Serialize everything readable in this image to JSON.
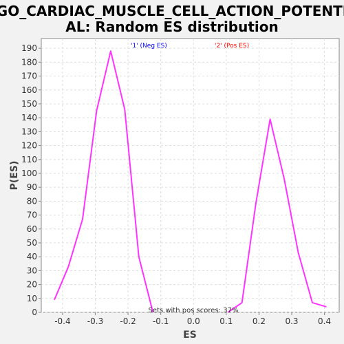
{
  "chart_data": {
    "type": "line",
    "title_line1": "GO_CARDIAC_MUSCLE_CELL_ACTION_POTENTI",
    "title_line2": "AL: Random ES distribution",
    "xlabel": "ES",
    "ylabel": "P(ES)",
    "xlim": [
      -0.465,
      0.445
    ],
    "ylim": [
      0,
      197
    ],
    "xticks": [
      -0.4,
      -0.3,
      -0.2,
      -0.1,
      0.0,
      0.1,
      0.2,
      0.3,
      0.4
    ],
    "xtick_labels": [
      "-0.4",
      "-0.3",
      "-0.2",
      "-0.1",
      "0.0",
      "0.1",
      "0.2",
      "0.3",
      "0.4"
    ],
    "yticks": [
      0,
      10,
      20,
      30,
      40,
      50,
      60,
      70,
      80,
      90,
      100,
      110,
      120,
      130,
      140,
      150,
      160,
      170,
      180,
      190
    ],
    "grid": true,
    "legend": [
      {
        "label": "'1' (Neg ES)",
        "color": "#0000ff"
      },
      {
        "label": "'2' (Pos ES)",
        "color": "#ff0000"
      }
    ],
    "series": [
      {
        "color": "#ff33ff",
        "x": [
          -0.425,
          -0.382,
          -0.339,
          -0.296,
          -0.253,
          -0.21,
          -0.167,
          -0.124
        ],
        "y": [
          9,
          33,
          67,
          145,
          188,
          146,
          40,
          0
        ]
      },
      {
        "color": "#ff33ff",
        "x": [
          0.105,
          0.148,
          0.191,
          0.234,
          0.277,
          0.32,
          0.363,
          0.406
        ],
        "y": [
          0,
          7,
          79,
          139,
          96,
          43,
          7,
          4
        ]
      }
    ],
    "annotation": "Sets with pos scores: 37%"
  }
}
